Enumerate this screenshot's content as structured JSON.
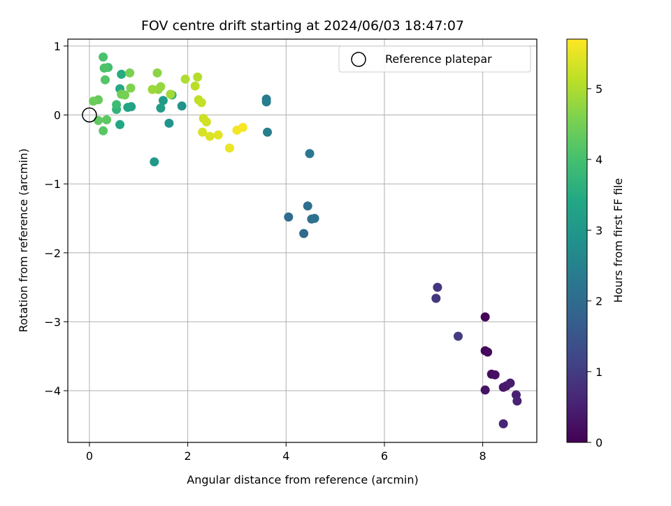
{
  "chart_data": {
    "type": "scatter",
    "title": "FOV centre drift starting at 2024/06/03 18:47:07",
    "xlabel": "Angular distance from reference (arcmin)",
    "ylabel": "Rotation from reference (arcmin)",
    "xlim": [
      -0.44,
      9.1
    ],
    "ylim": [
      -4.75,
      1.1
    ],
    "xticks": [
      0,
      2,
      4,
      6,
      8
    ],
    "yticks": [
      1,
      0,
      -1,
      -2,
      -3,
      -4
    ],
    "xtick_labels": [
      "0",
      "2",
      "4",
      "6",
      "8"
    ],
    "ytick_labels": [
      "1",
      "0",
      "−1",
      "−2",
      "−3",
      "−4"
    ],
    "grid": true,
    "legend": {
      "placement": "top-right",
      "entries": [
        "Reference platepar"
      ]
    },
    "reference_point": {
      "x": 0,
      "y": 0
    },
    "colorbar": {
      "label": "Hours from first FF file",
      "colormap": "viridis",
      "range": [
        0,
        5.7
      ],
      "ticks": [
        0,
        1,
        2,
        3,
        4,
        5
      ],
      "tick_labels": [
        "0",
        "1",
        "2",
        "3",
        "4",
        "5"
      ]
    },
    "points": [
      {
        "x": 8.05,
        "y": -2.93,
        "t": 0.05
      },
      {
        "x": 8.05,
        "y": -3.42,
        "t": 0.1
      },
      {
        "x": 8.1,
        "y": -3.44,
        "t": 0.15
      },
      {
        "x": 8.18,
        "y": -3.76,
        "t": 0.2
      },
      {
        "x": 8.25,
        "y": -3.77,
        "t": 0.25
      },
      {
        "x": 8.05,
        "y": -3.99,
        "t": 0.3
      },
      {
        "x": 8.42,
        "y": -3.95,
        "t": 0.35
      },
      {
        "x": 8.48,
        "y": -3.93,
        "t": 0.4
      },
      {
        "x": 8.56,
        "y": -3.89,
        "t": 0.45
      },
      {
        "x": 8.68,
        "y": -4.06,
        "t": 0.5
      },
      {
        "x": 8.7,
        "y": -4.15,
        "t": 0.55
      },
      {
        "x": 8.42,
        "y": -4.48,
        "t": 0.6
      },
      {
        "x": 7.08,
        "y": -2.5,
        "t": 0.85
      },
      {
        "x": 7.05,
        "y": -2.66,
        "t": 0.9
      },
      {
        "x": 7.5,
        "y": -3.21,
        "t": 1.0
      },
      {
        "x": 4.05,
        "y": -1.48,
        "t": 2.0
      },
      {
        "x": 4.36,
        "y": -1.72,
        "t": 1.95
      },
      {
        "x": 4.44,
        "y": -1.32,
        "t": 2.05
      },
      {
        "x": 4.52,
        "y": -1.51,
        "t": 2.1
      },
      {
        "x": 4.58,
        "y": -1.5,
        "t": 2.15
      },
      {
        "x": 4.48,
        "y": -0.56,
        "t": 2.25
      },
      {
        "x": 3.6,
        "y": 0.23,
        "t": 2.35
      },
      {
        "x": 3.6,
        "y": 0.19,
        "t": 2.4
      },
      {
        "x": 3.62,
        "y": -0.25,
        "t": 2.45
      },
      {
        "x": 1.88,
        "y": 0.13,
        "t": 2.9
      },
      {
        "x": 1.62,
        "y": -0.12,
        "t": 2.95
      },
      {
        "x": 1.32,
        "y": -0.68,
        "t": 3.05
      },
      {
        "x": 1.5,
        "y": 0.21,
        "t": 3.1
      },
      {
        "x": 1.45,
        "y": 0.1,
        "t": 3.15
      },
      {
        "x": 0.85,
        "y": 0.12,
        "t": 3.3
      },
      {
        "x": 0.78,
        "y": 0.11,
        "t": 3.35
      },
      {
        "x": 0.62,
        "y": -0.14,
        "t": 3.4
      },
      {
        "x": 0.62,
        "y": 0.38,
        "t": 3.45
      },
      {
        "x": 0.65,
        "y": 0.59,
        "t": 3.5
      },
      {
        "x": 1.68,
        "y": 0.29,
        "t": 3.6
      },
      {
        "x": 0.55,
        "y": 0.08,
        "t": 3.7
      },
      {
        "x": 0.55,
        "y": 0.15,
        "t": 3.9
      },
      {
        "x": 0.38,
        "y": 0.69,
        "t": 4.0
      },
      {
        "x": 0.28,
        "y": 0.84,
        "t": 4.05
      },
      {
        "x": 0.3,
        "y": 0.68,
        "t": 4.1
      },
      {
        "x": 0.32,
        "y": 0.51,
        "t": 4.15
      },
      {
        "x": 0.28,
        "y": -0.23,
        "t": 4.2
      },
      {
        "x": 0.35,
        "y": -0.07,
        "t": 4.25
      },
      {
        "x": 0.18,
        "y": -0.08,
        "t": 4.3
      },
      {
        "x": 0.18,
        "y": 0.22,
        "t": 4.35
      },
      {
        "x": 0.08,
        "y": 0.2,
        "t": 4.4
      },
      {
        "x": 0.65,
        "y": 0.3,
        "t": 4.45
      },
      {
        "x": 0.72,
        "y": 0.29,
        "t": 4.5
      },
      {
        "x": 0.82,
        "y": 0.61,
        "t": 4.55
      },
      {
        "x": 0.84,
        "y": 0.39,
        "t": 4.6
      },
      {
        "x": 1.38,
        "y": 0.61,
        "t": 4.7
      },
      {
        "x": 1.4,
        "y": 0.37,
        "t": 4.75
      },
      {
        "x": 1.45,
        "y": 0.41,
        "t": 4.8
      },
      {
        "x": 1.28,
        "y": 0.37,
        "t": 4.85
      },
      {
        "x": 1.65,
        "y": 0.3,
        "t": 4.9
      },
      {
        "x": 1.95,
        "y": 0.52,
        "t": 5.0
      },
      {
        "x": 2.2,
        "y": 0.55,
        "t": 5.05
      },
      {
        "x": 2.15,
        "y": 0.42,
        "t": 5.1
      },
      {
        "x": 2.22,
        "y": 0.22,
        "t": 5.15
      },
      {
        "x": 2.28,
        "y": 0.18,
        "t": 5.2
      },
      {
        "x": 2.32,
        "y": -0.05,
        "t": 5.25
      },
      {
        "x": 2.38,
        "y": -0.1,
        "t": 5.3
      },
      {
        "x": 2.3,
        "y": -0.25,
        "t": 5.35
      },
      {
        "x": 2.45,
        "y": -0.31,
        "t": 5.4
      },
      {
        "x": 2.62,
        "y": -0.29,
        "t": 5.45
      },
      {
        "x": 2.85,
        "y": -0.48,
        "t": 5.55
      },
      {
        "x": 3.0,
        "y": -0.22,
        "t": 5.6
      },
      {
        "x": 3.12,
        "y": -0.18,
        "t": 5.65
      }
    ]
  }
}
